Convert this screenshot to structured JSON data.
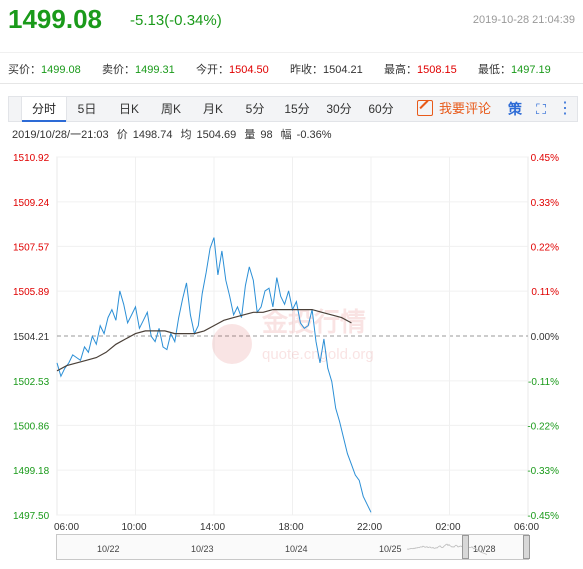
{
  "quote": {
    "price": "1499.08",
    "change": "-5.13(-0.34%)",
    "timestamp": "2019-10-28 21:04:39"
  },
  "fields": [
    {
      "label": "买价：",
      "value": "1499.08",
      "color": "green"
    },
    {
      "label": "卖价：",
      "value": "1499.31",
      "color": "green"
    },
    {
      "label": "今开：",
      "value": "1504.50",
      "color": "red"
    },
    {
      "label": "昨收：",
      "value": "1504.21",
      "color": "normal"
    },
    {
      "label": "最高：",
      "value": "1508.15",
      "color": "red"
    },
    {
      "label": "最低：",
      "value": "1497.19",
      "color": "green"
    }
  ],
  "tabs": [
    "分时",
    "5日",
    "日K",
    "周K",
    "月K",
    "5分",
    "15分",
    "30分",
    "60分"
  ],
  "active_tab": "分时",
  "comment_button": "我要评论",
  "tools": [
    {
      "icon": "logo-icon",
      "glyph": "策"
    },
    {
      "icon": "fullscreen-icon",
      "glyph": "⛶"
    },
    {
      "icon": "more-icon",
      "glyph": "⋮"
    }
  ],
  "info": {
    "time": "2019/10/28/一21:03",
    "price_label": "价",
    "price": "1498.74",
    "avg_label": "均",
    "avg": "1504.69",
    "vol_label": "量",
    "vol": "98",
    "amp_label": "幅",
    "amp": "-0.36%"
  },
  "watermark": {
    "cn": "金投行情",
    "url": "quote.cngold.org"
  },
  "navigator": {
    "dates": [
      "10/22",
      "10/23",
      "10/24",
      "10/25",
      "10/28"
    ]
  },
  "colors": {
    "up": "#e00000",
    "down": "#1a9a1a",
    "price_line": "#2b8fd6",
    "avg_line": "#4a4038",
    "prev_close_line": "#999999",
    "accent": "#2d6bd6"
  },
  "chart_data": {
    "type": "line",
    "title": "",
    "xlabel": "",
    "ylabel": "",
    "prev_close": 1504.21,
    "x_ticks": [
      "06:00",
      "10:00",
      "14:00",
      "18:00",
      "22:00",
      "02:00",
      "06:00"
    ],
    "x_tick_hours": [
      0,
      4,
      8,
      12,
      16,
      20,
      24
    ],
    "y_ticks_left": [
      "1510.92",
      "1509.24",
      "1507.57",
      "1505.89",
      "1504.21",
      "1502.53",
      "1500.86",
      "1499.18",
      "1497.50"
    ],
    "y_ticks_right": [
      "0.45%",
      "0.33%",
      "0.22%",
      "0.11%",
      "0.00%",
      "-0.11%",
      "-0.22%",
      "-0.33%",
      "-0.45%"
    ],
    "ylim": [
      1497.5,
      1510.92
    ],
    "xlim_hours": [
      0,
      24
    ],
    "series": [
      {
        "name": "",
        "role": "price",
        "x": [
          0,
          0.2,
          0.4,
          0.6,
          0.8,
          1.0,
          1.2,
          1.4,
          1.6,
          1.8,
          2.0,
          2.2,
          2.4,
          2.6,
          2.8,
          3.0,
          3.2,
          3.4,
          3.6,
          3.8,
          4.0,
          4.2,
          4.4,
          4.6,
          4.8,
          5.0,
          5.2,
          5.4,
          5.6,
          5.8,
          6.0,
          6.2,
          6.4,
          6.6,
          6.8,
          7.0,
          7.2,
          7.4,
          7.6,
          7.8,
          8.0,
          8.2,
          8.4,
          8.6,
          8.8,
          9.0,
          9.2,
          9.4,
          9.6,
          9.8,
          10.0,
          10.2,
          10.4,
          10.6,
          10.8,
          11.0,
          11.2,
          11.4,
          11.6,
          11.8,
          12.0,
          12.2,
          12.4,
          12.6,
          12.8,
          13.0,
          13.2,
          13.4,
          13.6,
          13.8,
          14.0,
          14.2,
          14.4,
          14.6,
          14.8,
          15.0,
          15.2,
          15.4,
          15.6,
          15.8,
          16.0
        ],
        "values": [
          1503.2,
          1502.7,
          1503.0,
          1503.2,
          1503.5,
          1503.4,
          1503.3,
          1503.8,
          1503.6,
          1504.2,
          1503.9,
          1504.6,
          1504.3,
          1504.9,
          1505.2,
          1504.8,
          1505.9,
          1505.4,
          1504.7,
          1505.0,
          1505.3,
          1504.5,
          1504.8,
          1505.1,
          1504.2,
          1504.0,
          1504.5,
          1503.8,
          1503.7,
          1504.3,
          1504.0,
          1504.9,
          1505.6,
          1506.2,
          1505.0,
          1504.3,
          1504.6,
          1505.8,
          1506.6,
          1507.5,
          1507.9,
          1506.5,
          1507.4,
          1506.3,
          1505.7,
          1505.0,
          1505.3,
          1504.9,
          1506.1,
          1506.8,
          1506.3,
          1505.1,
          1505.3,
          1505.9,
          1506.0,
          1505.3,
          1506.4,
          1505.7,
          1505.4,
          1505.9,
          1505.2,
          1505.5,
          1504.7,
          1504.5,
          1504.6,
          1505.2,
          1504.0,
          1503.2,
          1504.1,
          1503.0,
          1502.5,
          1501.5,
          1501.0,
          1500.4,
          1499.8,
          1499.4,
          1499.0,
          1498.8,
          1498.2,
          1497.9,
          1497.6
        ]
      },
      {
        "name": "",
        "role": "average",
        "x": [
          0,
          0.5,
          1,
          1.5,
          2,
          2.5,
          3,
          3.5,
          4,
          4.5,
          5,
          5.5,
          6,
          6.5,
          7,
          7.5,
          8,
          8.5,
          9,
          9.5,
          10,
          10.5,
          11,
          11.5,
          12,
          12.5,
          13,
          13.5,
          14,
          14.5,
          15
        ],
        "values": [
          1502.9,
          1503.1,
          1503.2,
          1503.3,
          1503.4,
          1503.6,
          1503.9,
          1504.1,
          1504.3,
          1504.4,
          1504.4,
          1504.4,
          1504.3,
          1504.3,
          1504.3,
          1504.4,
          1504.6,
          1504.8,
          1504.9,
          1505.0,
          1505.1,
          1505.1,
          1505.2,
          1505.2,
          1505.2,
          1505.2,
          1505.2,
          1505.1,
          1505.0,
          1504.9,
          1504.7
        ]
      }
    ],
    "grid": true,
    "legend": "none"
  }
}
